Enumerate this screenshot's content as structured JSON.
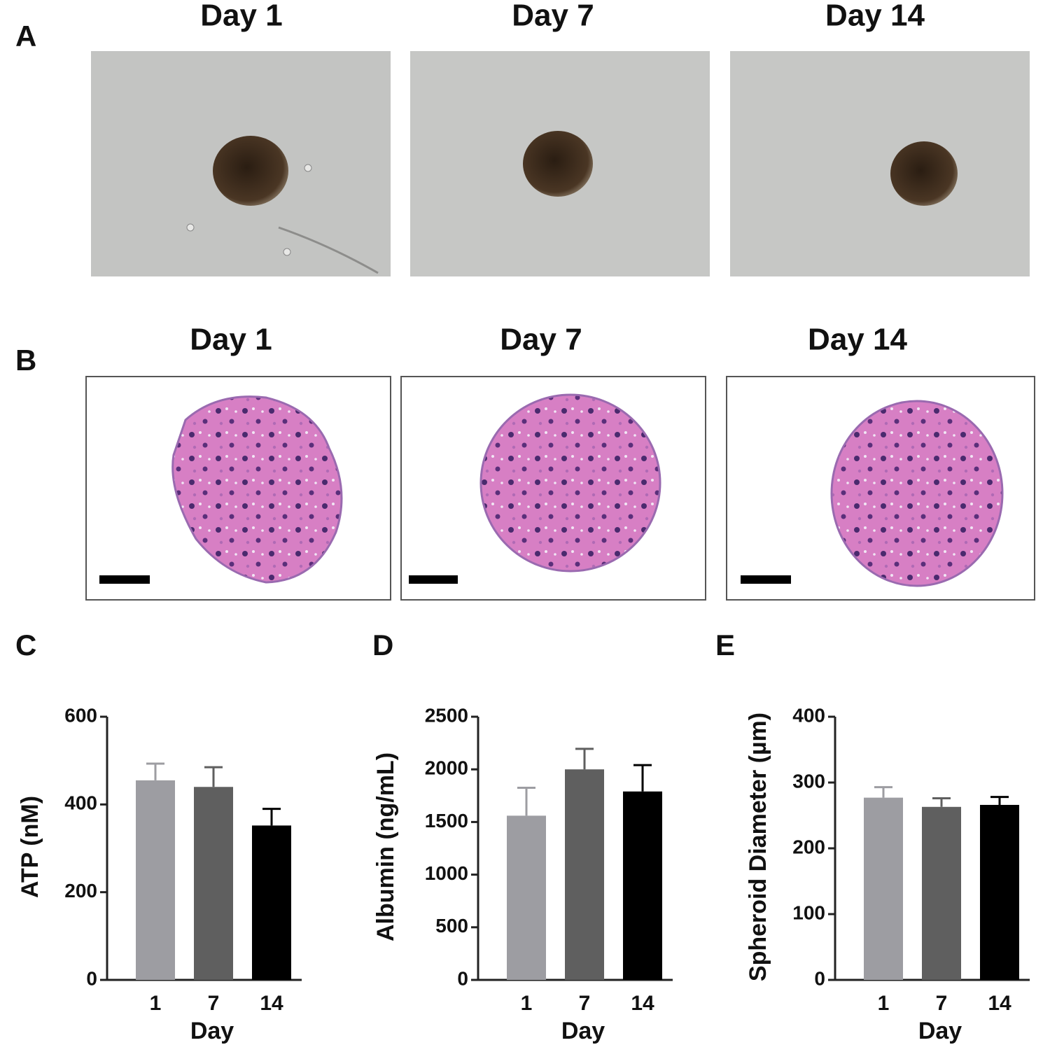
{
  "panels": {
    "A": {
      "label": "A",
      "titles": [
        "Day 1",
        "Day 7",
        "Day 14"
      ]
    },
    "B": {
      "label": "B",
      "titles": [
        "Day 1",
        "Day 7",
        "Day 14"
      ]
    }
  },
  "chart_data": [
    {
      "type": "bar",
      "panel_label": "C",
      "y_label": "ATP (nM)",
      "x_label": "Day",
      "categories": [
        "1",
        "7",
        "14"
      ],
      "values": [
        455,
        440,
        352
      ],
      "errors": [
        38,
        45,
        38
      ],
      "colors": [
        "#9d9da2",
        "#5f5f5f",
        "#000000"
      ],
      "ylim": [
        0,
        600
      ],
      "yticks": [
        0,
        200,
        400,
        600
      ]
    },
    {
      "type": "bar",
      "panel_label": "D",
      "y_label": "Albumin (ng/mL)",
      "x_label": "Day",
      "categories": [
        "1",
        "7",
        "14"
      ],
      "values": [
        1560,
        2000,
        1790
      ],
      "errors": [
        265,
        195,
        250
      ],
      "colors": [
        "#9d9da2",
        "#5f5f5f",
        "#000000"
      ],
      "ylim": [
        0,
        2500
      ],
      "yticks": [
        0,
        500,
        1000,
        1500,
        2000,
        2500
      ]
    },
    {
      "type": "bar",
      "panel_label": "E",
      "y_label": "Spheroid Diameter (µm)",
      "x_label": "Day",
      "categories": [
        "1",
        "7",
        "14"
      ],
      "values": [
        277,
        263,
        266
      ],
      "errors": [
        16,
        13,
        12
      ],
      "colors": [
        "#9d9da2",
        "#5f5f5f",
        "#000000"
      ],
      "ylim": [
        0,
        400
      ],
      "yticks": [
        0,
        100,
        200,
        300,
        400
      ]
    }
  ]
}
